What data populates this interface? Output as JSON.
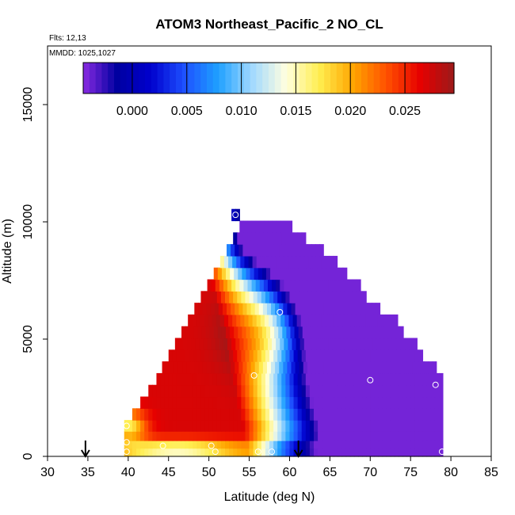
{
  "chart_data": {
    "type": "heatmap",
    "title": "ATOM3 Northeast_Pacific_2 NO_CL",
    "notes": [
      "Flts: 12,13",
      "MMDD: 1025,1027"
    ],
    "xlabel": "Latitude (deg N)",
    "ylabel": "Altitude (m)",
    "xlim": [
      30,
      85
    ],
    "ylim": [
      0,
      17500
    ],
    "x_ticks": [
      "30",
      "35",
      "40",
      "45",
      "50",
      "55",
      "60",
      "65",
      "70",
      "75",
      "80",
      "85"
    ],
    "y_ticks": [
      "0",
      "5000",
      "10000",
      "15000"
    ],
    "colorbar": {
      "ticks": [
        "0.000",
        "0.005",
        "0.010",
        "0.015",
        "0.020",
        "0.025"
      ],
      "range": [
        -0.0045,
        0.0295
      ],
      "colors": [
        "#8a2be2",
        "#0000a0",
        "#0000cd",
        "#1e50ff",
        "#1ea0ff",
        "#a0d8ff",
        "#ffffe0",
        "#ffee50",
        "#ffa500",
        "#ff5000",
        "#e60000",
        "#9b1a1a"
      ]
    },
    "profile_markers_latitude": [
      34.7,
      61.1
    ],
    "sample_points": [
      {
        "lat": 39.8,
        "alt": 1300
      },
      {
        "lat": 39.8,
        "alt": 600
      },
      {
        "lat": 39.8,
        "alt": 200
      },
      {
        "lat": 44.3,
        "alt": 450
      },
      {
        "lat": 50.3,
        "alt": 450
      },
      {
        "lat": 50.8,
        "alt": 200
      },
      {
        "lat": 53.3,
        "alt": 10300
      },
      {
        "lat": 55.6,
        "alt": 3450
      },
      {
        "lat": 56.1,
        "alt": 200
      },
      {
        "lat": 57.8,
        "alt": 200
      },
      {
        "lat": 58.8,
        "alt": 6150
      },
      {
        "lat": 70.0,
        "alt": 3250
      },
      {
        "lat": 78.1,
        "alt": 3050
      },
      {
        "lat": 78.9,
        "alt": 200
      }
    ],
    "altitude_rows": [
      {
        "alt": 200,
        "lat": [
          39.5,
          79
        ]
      },
      {
        "alt": 500,
        "lat": [
          39.5,
          79
        ]
      },
      {
        "alt": 850,
        "lat": [
          39.5,
          79
        ]
      },
      {
        "alt": 1300,
        "lat": [
          39.5,
          79
        ]
      },
      {
        "alt": 1800,
        "lat": [
          40.5,
          79
        ]
      },
      {
        "alt": 2300,
        "lat": [
          41.5,
          79
        ]
      },
      {
        "alt": 2800,
        "lat": [
          42.5,
          79
        ]
      },
      {
        "alt": 3300,
        "lat": [
          43.5,
          79
        ]
      },
      {
        "alt": 3800,
        "lat": [
          44.2,
          78
        ]
      },
      {
        "alt": 4300,
        "lat": [
          45.0,
          76.5
        ]
      },
      {
        "alt": 4800,
        "lat": [
          45.8,
          75.5
        ]
      },
      {
        "alt": 5300,
        "lat": [
          46.6,
          74
        ]
      },
      {
        "alt": 5800,
        "lat": [
          47.4,
          73
        ]
      },
      {
        "alt": 6300,
        "lat": [
          48.2,
          71
        ]
      },
      {
        "alt": 6800,
        "lat": [
          49.0,
          69.5
        ]
      },
      {
        "alt": 7300,
        "lat": [
          49.8,
          68.5
        ]
      },
      {
        "alt": 7800,
        "lat": [
          50.6,
          67
        ]
      },
      {
        "alt": 8300,
        "lat": [
          51.4,
          65.5
        ]
      },
      {
        "alt": 8800,
        "lat": [
          52.2,
          64
        ]
      },
      {
        "alt": 9300,
        "lat": [
          53.0,
          62
        ]
      },
      {
        "alt": 9800,
        "lat": [
          53.8,
          60
        ]
      },
      {
        "alt": 10300,
        "lat": [
          52.8,
          53.6
        ]
      }
    ]
  }
}
